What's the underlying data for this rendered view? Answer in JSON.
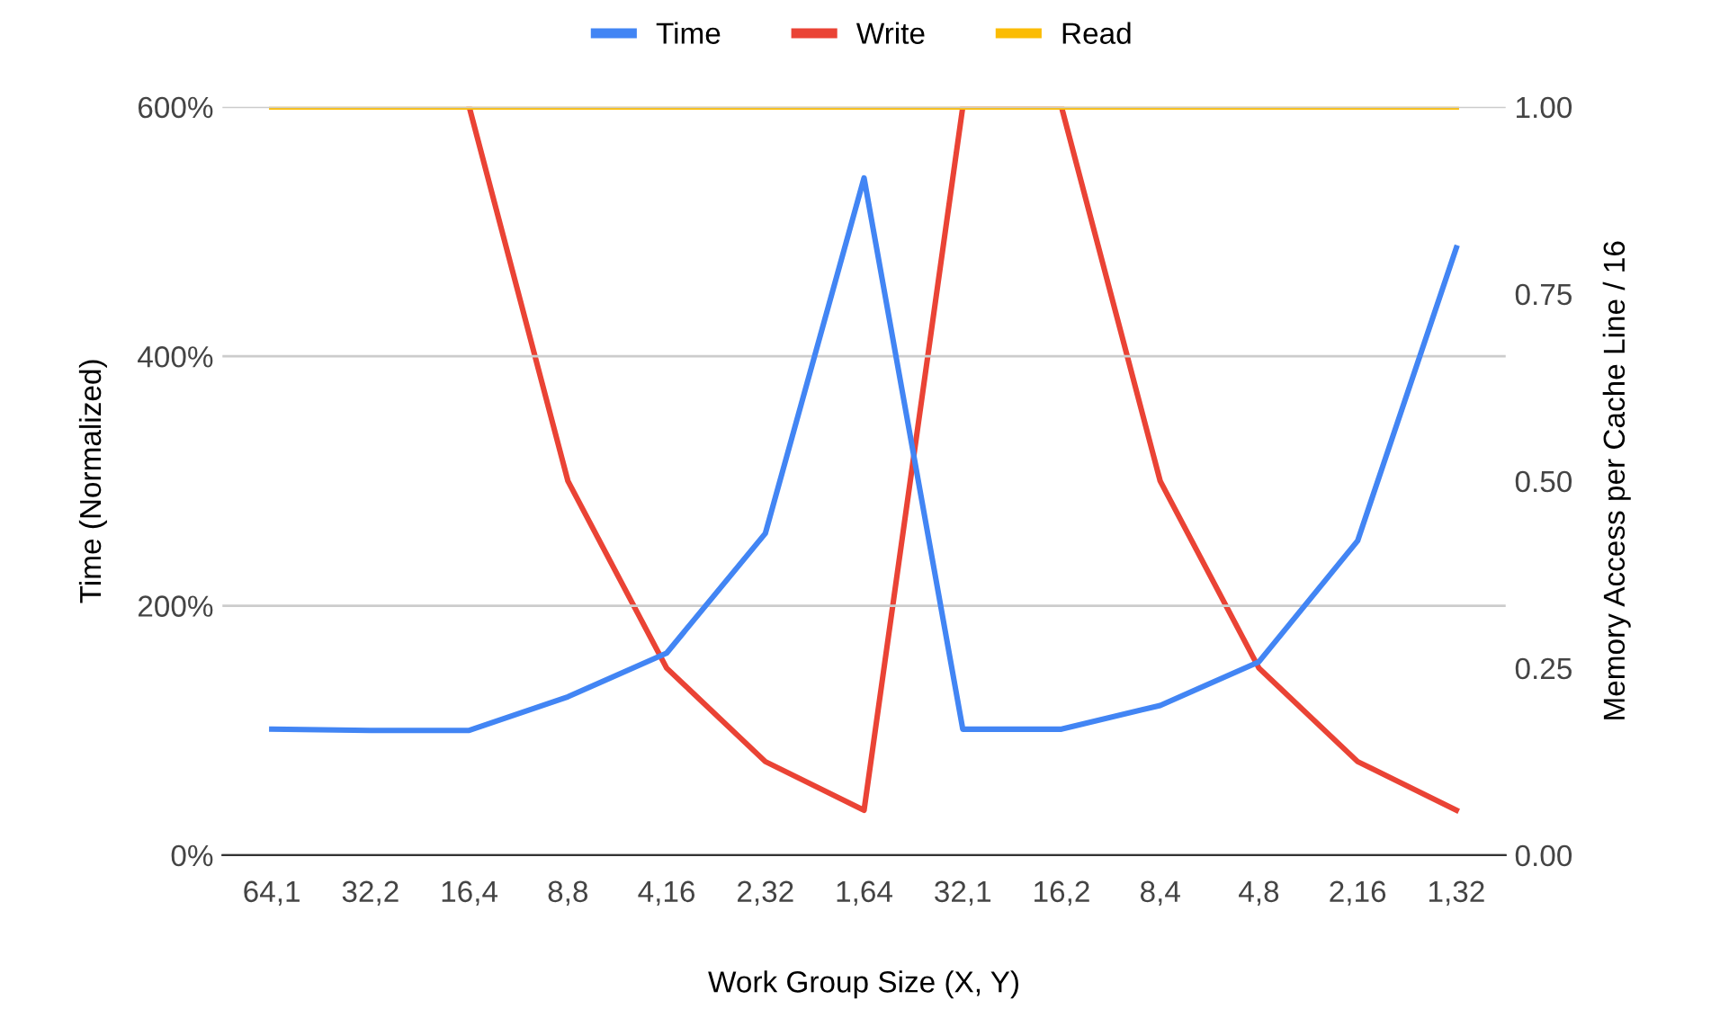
{
  "chart_data": {
    "type": "line",
    "xlabel": "Work Group Size (X, Y)",
    "ylabel": "Time (Normalized)",
    "y2label": "Memory Access per Cache Line / 16",
    "categories": [
      "64,1",
      "32,2",
      "16,4",
      "8,8",
      "4,16",
      "2,32",
      "1,64",
      "32,1",
      "16,2",
      "8,4",
      "4,8",
      "2,16",
      "1,32"
    ],
    "series": [
      {
        "name": "Time",
        "color": "#4285f4",
        "values": [
          101,
          100,
          100,
          127,
          162,
          258,
          543,
          101,
          101,
          120,
          155,
          252,
          487
        ]
      },
      {
        "name": "Write",
        "color": "#ea4335",
        "axis": "y2",
        "values": [
          null,
          null,
          1,
          0.5,
          0.25,
          0.125,
          0.06,
          1,
          1,
          0.5,
          0.25,
          0.125,
          0.06
        ]
      },
      {
        "name": "Read",
        "color": "#fbbc04",
        "axis": "y2",
        "values": [
          1,
          1,
          1,
          1,
          1,
          1,
          1,
          1,
          1,
          1,
          1,
          1,
          1
        ]
      }
    ],
    "ylim": [
      0,
      600
    ],
    "yticks": [
      {
        "value": 0,
        "label": "0%"
      },
      {
        "value": 200,
        "label": "200%"
      },
      {
        "value": 400,
        "label": "400%"
      },
      {
        "value": 600,
        "label": "600%"
      }
    ],
    "y2lim": [
      0,
      1
    ],
    "y2ticks": [
      {
        "value": 0,
        "label": "0.00"
      },
      {
        "value": 0.25,
        "label": "0.25"
      },
      {
        "value": 0.5,
        "label": "0.50"
      },
      {
        "value": 0.75,
        "label": "0.75"
      },
      {
        "value": 1,
        "label": "1.00"
      }
    ],
    "grid": "y",
    "legend": "top"
  }
}
